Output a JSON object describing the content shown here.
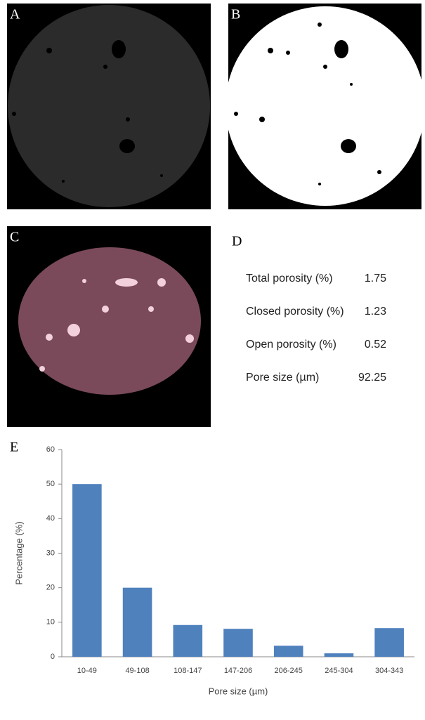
{
  "panels": {
    "a": "A",
    "b": "B",
    "c": "C",
    "d": "D",
    "e": "E"
  },
  "table": {
    "rows": [
      [
        "Total porosity (%)",
        1.75
      ],
      [
        "Closed porosity (%)",
        1.23
      ],
      [
        "Open porosity (%)",
        0.52
      ],
      [
        "Pore size (µm)",
        92.25
      ]
    ]
  },
  "chart_data": {
    "type": "bar",
    "x_label": "Pore size (µm)",
    "y_label": "Percentage (%)",
    "categories": [
      "10-49",
      "49-108",
      "108-147",
      "147-206",
      "206-245",
      "245-304",
      "304-343"
    ],
    "values": [
      50,
      20,
      9.2,
      8.1,
      3.2,
      1,
      8.3
    ],
    "color": "#4f81bd",
    "ylim": [
      0,
      60
    ],
    "yticks": [
      0,
      10,
      20,
      30,
      40,
      50,
      60
    ],
    "grid": false
  }
}
